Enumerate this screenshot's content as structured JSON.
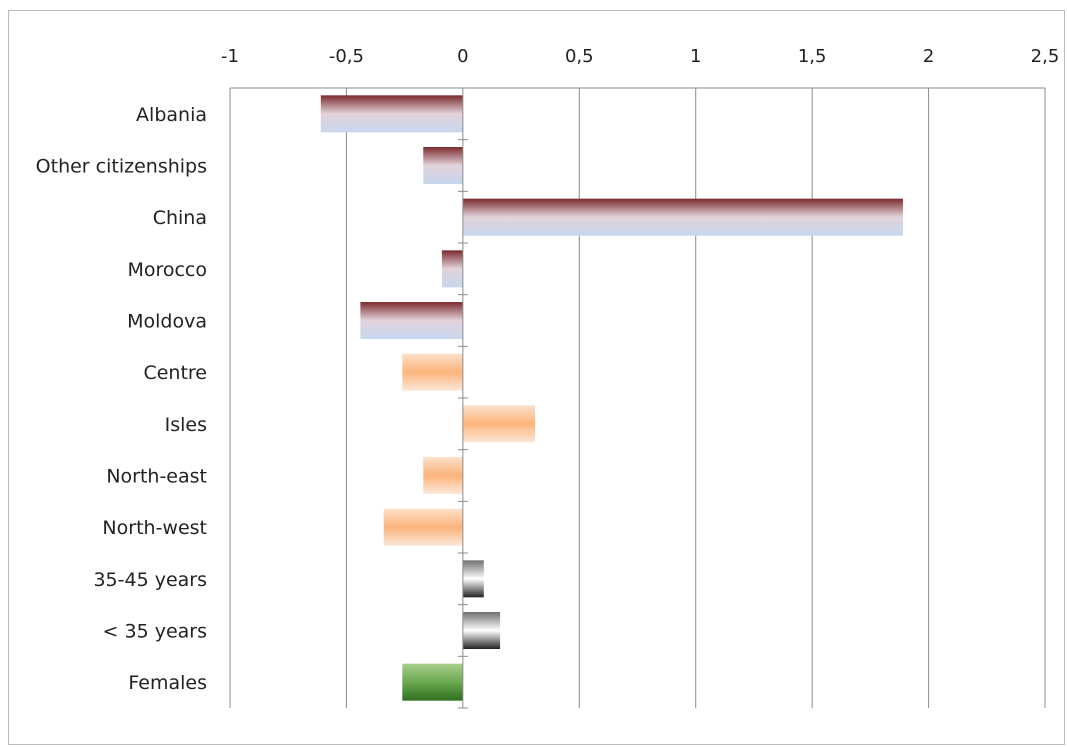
{
  "chart_data": {
    "type": "bar",
    "orientation": "horizontal",
    "xlim": [
      -1,
      2.5
    ],
    "ticks": [
      -1,
      -0.5,
      0,
      0.5,
      1,
      1.5,
      2,
      2.5
    ],
    "tick_labels": [
      "-1",
      "-0,5",
      "0",
      "0,5",
      "1",
      "1,5",
      "2",
      "2,5"
    ],
    "grid": "vertical",
    "legend": "none",
    "categories": [
      "Albania",
      "Other citizenships",
      "China",
      "Morocco",
      "Moldova",
      "Centre",
      "Isles",
      "North-east",
      "North-west",
      "35-45 years",
      "< 35 years",
      "Females"
    ],
    "values": [
      -0.61,
      -0.17,
      1.89,
      -0.09,
      -0.44,
      -0.26,
      0.31,
      -0.17,
      -0.34,
      0.09,
      0.16,
      -0.26
    ],
    "bar_groups": [
      "citizenship",
      "citizenship",
      "citizenship",
      "citizenship",
      "citizenship",
      "area",
      "area",
      "area",
      "area",
      "age",
      "age",
      "gender"
    ],
    "group_colors": {
      "citizenship": {
        "top": "#7b2a2e",
        "mid": "#e3d3da",
        "bottom": "#c7d6ee"
      },
      "area": {
        "top": "#fde0c9",
        "mid": "#fbb47c",
        "bottom": "#fde8d8"
      },
      "age": {
        "top": "#707070",
        "mid": "#ffffff",
        "bottom": "#222222"
      },
      "gender": {
        "top": "#a8d08d",
        "mid": "#6aa84f",
        "bottom": "#2f6f1f"
      }
    }
  }
}
